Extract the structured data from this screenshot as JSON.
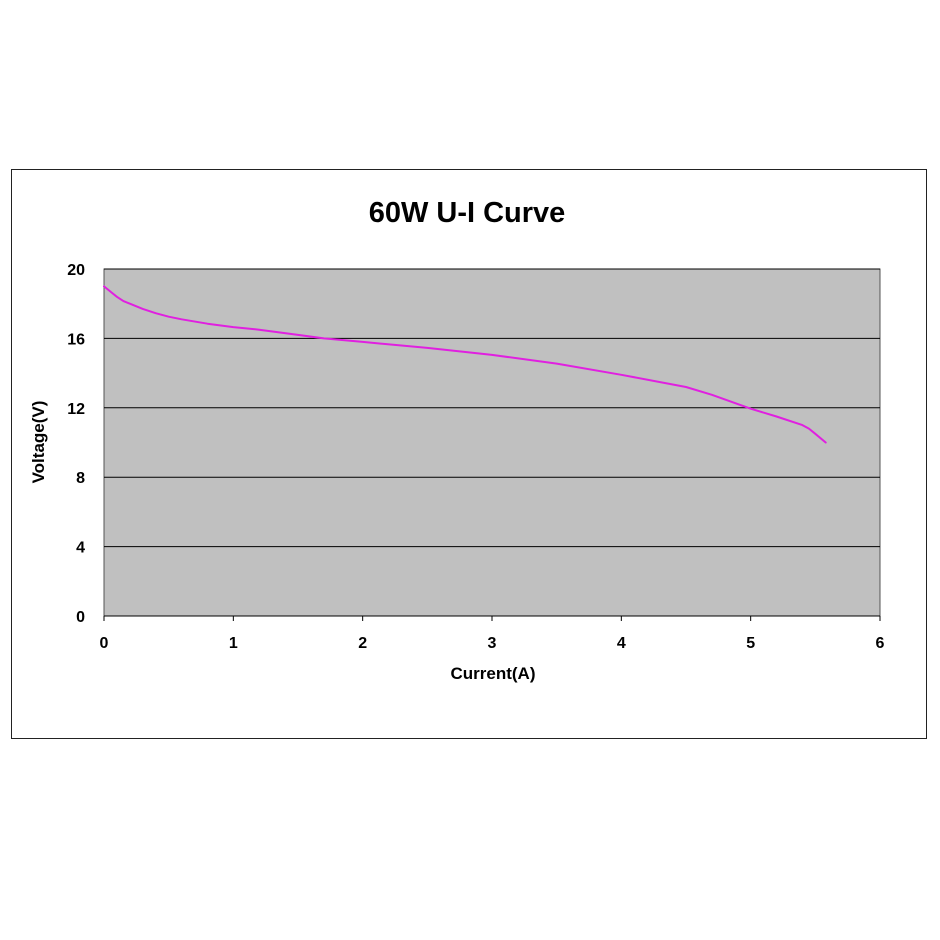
{
  "chart_data": {
    "type": "line",
    "title": "60W U-I Curve",
    "xlabel": "Current(A)",
    "ylabel": "Voltage(V)",
    "xlim": [
      0,
      6
    ],
    "ylim": [
      0,
      20
    ],
    "xticks": [
      0,
      1,
      2,
      3,
      4,
      5,
      6
    ],
    "yticks": [
      0,
      4,
      8,
      12,
      16,
      20
    ],
    "xtick_labels": [
      "0",
      "1",
      "2",
      "3",
      "4",
      "5",
      "6"
    ],
    "ytick_labels": [
      "0",
      "4",
      "8",
      "12",
      "16",
      "20"
    ],
    "grid": "horizontal",
    "legend": "none",
    "plot_background": "#c0c0c0",
    "grid_color": "#000000",
    "series": [
      {
        "color": "#e020e0",
        "x": [
          0,
          0.05,
          0.1,
          0.15,
          0.2,
          0.3,
          0.4,
          0.5,
          0.6,
          0.8,
          1.0,
          1.2,
          1.5,
          1.7,
          2.0,
          2.5,
          3.0,
          3.5,
          4.0,
          4.5,
          4.7,
          5.0,
          5.2,
          5.4,
          5.45,
          5.5,
          5.58
        ],
        "y": [
          19.0,
          18.7,
          18.4,
          18.15,
          18.0,
          17.7,
          17.45,
          17.25,
          17.1,
          16.85,
          16.65,
          16.5,
          16.2,
          16.0,
          15.8,
          15.45,
          15.05,
          14.55,
          13.9,
          13.2,
          12.75,
          11.95,
          11.5,
          11.0,
          10.8,
          10.5,
          10.0
        ]
      }
    ]
  }
}
